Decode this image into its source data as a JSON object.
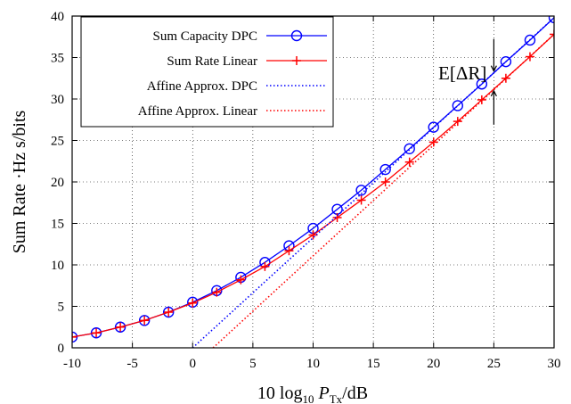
{
  "chart_data": {
    "type": "line",
    "xlabel": "10 log10 P_Tx/dB",
    "ylabel": "Sum Rate ·Hz s/bits",
    "xlim": [
      -10,
      30
    ],
    "ylim": [
      0,
      40
    ],
    "x_ticks": [
      -10,
      -5,
      0,
      5,
      10,
      15,
      20,
      25,
      30
    ],
    "y_ticks": [
      0,
      5,
      10,
      15,
      20,
      25,
      30,
      35,
      40
    ],
    "grid": true,
    "legend_position": "top-left",
    "annotation": {
      "label": "E[ΔR]",
      "x": 25
    },
    "series": [
      {
        "name": "Sum Capacity DPC",
        "color": "#0000ff",
        "style": "solid",
        "marker": "circle",
        "x": [
          -10,
          -8,
          -6,
          -4,
          -2,
          0,
          2,
          4,
          6,
          8,
          10,
          12,
          14,
          16,
          18,
          20,
          22,
          24,
          26,
          28,
          30
        ],
        "values": [
          1.3,
          1.8,
          2.5,
          3.3,
          4.3,
          5.5,
          6.9,
          8.5,
          10.3,
          12.3,
          14.4,
          16.7,
          19.0,
          21.5,
          24.0,
          26.6,
          29.2,
          31.8,
          34.5,
          37.1,
          39.8
        ]
      },
      {
        "name": "Sum Rate Linear",
        "color": "#ff0000",
        "style": "solid",
        "marker": "plus",
        "x": [
          -10,
          -8,
          -6,
          -4,
          -2,
          0,
          2,
          4,
          6,
          8,
          10,
          12,
          14,
          16,
          18,
          20,
          22,
          24,
          26,
          28,
          30
        ],
        "values": [
          1.3,
          1.8,
          2.5,
          3.3,
          4.3,
          5.4,
          6.7,
          8.2,
          9.8,
          11.7,
          13.6,
          15.7,
          17.8,
          20.0,
          22.4,
          24.8,
          27.3,
          29.9,
          32.5,
          35.1,
          37.8
        ]
      },
      {
        "name": "Affine Approx. DPC",
        "color": "#0000ff",
        "style": "dotted",
        "marker": "none",
        "x": [
          0,
          30
        ],
        "values": [
          0,
          39.8
        ]
      },
      {
        "name": "Affine Approx. Linear",
        "color": "#ff0000",
        "style": "dotted",
        "marker": "none",
        "x": [
          1.7,
          30
        ],
        "values": [
          0,
          37.8
        ]
      }
    ]
  }
}
